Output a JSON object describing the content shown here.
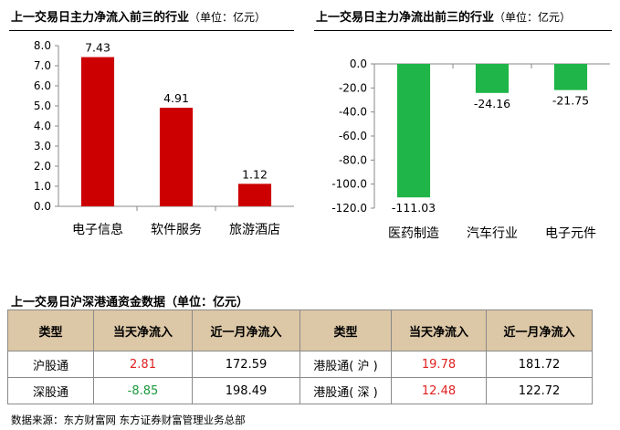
{
  "charts": {
    "inflow": {
      "title": "上一交易日主力净流入前三的行业",
      "unit": "（单位：亿元）"
    },
    "outflow": {
      "title": "上一交易日主力净流出前三的行业",
      "unit": "（单位：亿元）"
    }
  },
  "chart_data": [
    {
      "type": "bar",
      "title": "上一交易日主力净流入前三的行业（单位：亿元）",
      "categories": [
        "电子信息",
        "软件服务",
        "旅游酒店"
      ],
      "values": [
        7.43,
        4.91,
        1.12
      ],
      "data_labels": [
        "7.43",
        "4.91",
        "1.12"
      ],
      "ylim": [
        0,
        8
      ],
      "yticks": [
        "0.0",
        "1.0",
        "2.0",
        "3.0",
        "4.0",
        "5.0",
        "6.0",
        "7.0",
        "8.0"
      ],
      "grid": false,
      "bar_color": "#cc0000"
    },
    {
      "type": "bar",
      "title": "上一交易日主力净流出前三的行业（单位：亿元）",
      "categories": [
        "医药制造",
        "汽车行业",
        "电子元件"
      ],
      "values": [
        -111.03,
        -24.16,
        -21.75
      ],
      "data_labels": [
        "-111.03",
        "-24.16",
        "-21.75"
      ],
      "ylim": [
        -120,
        0
      ],
      "yticks": [
        "0.0",
        "-20.0",
        "-40.0",
        "-60.0",
        "-80.0",
        "-100.0",
        "-120.0"
      ],
      "grid": false,
      "bar_color": "#1fb548"
    }
  ],
  "table": {
    "title": "上一交易日沪深港通资金数据（单位：亿元）",
    "headers": [
      "类型",
      "当天净流入",
      "近一月净流入",
      "类型",
      "当天净流入",
      "近一月净流入"
    ],
    "rows": [
      {
        "type1": "沪股通",
        "day1": "2.81",
        "month1": "172.59",
        "type2": "港股通( 沪 )",
        "day2": "19.78",
        "month2": "181.72"
      },
      {
        "type1": "深股通",
        "day1": "-8.85",
        "month1": "198.49",
        "type2": "港股通( 深 )",
        "day2": "12.48",
        "month2": "122.72"
      }
    ],
    "header_bg": "#dcc7a6"
  },
  "source": "数据来源：东方财富网    东方证券财富管理业务总部"
}
